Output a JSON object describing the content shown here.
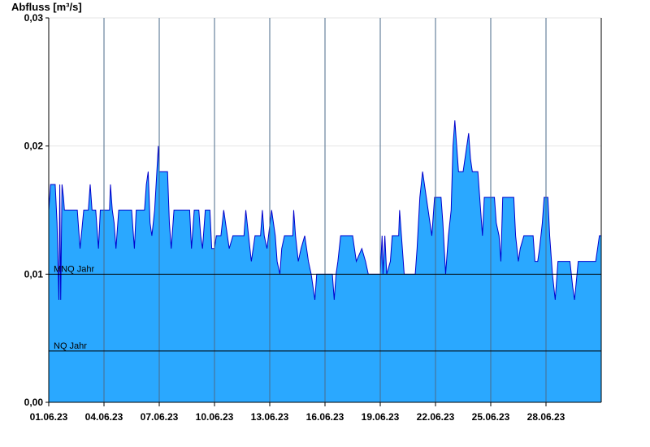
{
  "chart_data": {
    "type": "area",
    "title": "",
    "ylabel": "Abfluss [m³/s]",
    "xlabel": "",
    "ylim": [
      0,
      0.03
    ],
    "x_range_days": [
      0,
      30
    ],
    "y_ticks": [
      {
        "value": 0,
        "label": "0,00"
      },
      {
        "value": 0.01,
        "label": "0,01"
      },
      {
        "value": 0.02,
        "label": "0,02"
      },
      {
        "value": 0.03,
        "label": "0,03"
      }
    ],
    "x_ticks": [
      {
        "day": 0,
        "label": "01.06.23"
      },
      {
        "day": 3,
        "label": "04.06.23"
      },
      {
        "day": 6,
        "label": "07.06.23"
      },
      {
        "day": 9,
        "label": "10.06.23"
      },
      {
        "day": 12,
        "label": "13.06.23"
      },
      {
        "day": 15,
        "label": "16.06.23"
      },
      {
        "day": 18,
        "label": "19.06.23"
      },
      {
        "day": 21,
        "label": "22.06.23"
      },
      {
        "day": 24,
        "label": "25.06.23"
      },
      {
        "day": 27,
        "label": "28.06.23"
      }
    ],
    "reference_lines": [
      {
        "name": "MNQ Jahr",
        "value": 0.01
      },
      {
        "name": "NQ Jahr",
        "value": 0.004
      }
    ],
    "colors": {
      "fill": "#2aa8ff",
      "line": "#0000cc",
      "grid": "#4a6a8a",
      "ref": "#000000"
    },
    "grid_vertical": true,
    "series": [
      {
        "values": [
          [
            0.0,
            0.015
          ],
          [
            0.1,
            0.017
          ],
          [
            0.35,
            0.017
          ],
          [
            0.45,
            0.014
          ],
          [
            0.55,
            0.008
          ],
          [
            0.6,
            0.017
          ],
          [
            0.65,
            0.008
          ],
          [
            0.72,
            0.017
          ],
          [
            0.8,
            0.016
          ],
          [
            0.85,
            0.015
          ],
          [
            1.55,
            0.015
          ],
          [
            1.7,
            0.012
          ],
          [
            1.9,
            0.015
          ],
          [
            2.15,
            0.015
          ],
          [
            2.25,
            0.017
          ],
          [
            2.35,
            0.015
          ],
          [
            2.55,
            0.015
          ],
          [
            2.7,
            0.012
          ],
          [
            2.8,
            0.015
          ],
          [
            3.3,
            0.015
          ],
          [
            3.35,
            0.017
          ],
          [
            3.45,
            0.015
          ],
          [
            3.55,
            0.014
          ],
          [
            3.65,
            0.012
          ],
          [
            3.8,
            0.015
          ],
          [
            4.5,
            0.015
          ],
          [
            4.65,
            0.012
          ],
          [
            4.75,
            0.015
          ],
          [
            5.2,
            0.015
          ],
          [
            5.3,
            0.017
          ],
          [
            5.4,
            0.018
          ],
          [
            5.5,
            0.014
          ],
          [
            5.6,
            0.013
          ],
          [
            5.75,
            0.015
          ],
          [
            5.95,
            0.02
          ],
          [
            6.0,
            0.018
          ],
          [
            6.45,
            0.018
          ],
          [
            6.55,
            0.014
          ],
          [
            6.65,
            0.012
          ],
          [
            6.8,
            0.015
          ],
          [
            7.65,
            0.015
          ],
          [
            7.75,
            0.012
          ],
          [
            7.9,
            0.015
          ],
          [
            8.15,
            0.015
          ],
          [
            8.25,
            0.013
          ],
          [
            8.35,
            0.012
          ],
          [
            8.5,
            0.015
          ],
          [
            8.75,
            0.015
          ],
          [
            8.85,
            0.012
          ],
          [
            9.0,
            0.012
          ],
          [
            9.1,
            0.013
          ],
          [
            9.35,
            0.013
          ],
          [
            9.5,
            0.015
          ],
          [
            9.7,
            0.013
          ],
          [
            9.8,
            0.012
          ],
          [
            10.0,
            0.013
          ],
          [
            10.6,
            0.013
          ],
          [
            10.7,
            0.015
          ],
          [
            10.85,
            0.013
          ],
          [
            11.0,
            0.011
          ],
          [
            11.2,
            0.013
          ],
          [
            11.5,
            0.013
          ],
          [
            11.6,
            0.015
          ],
          [
            11.7,
            0.013
          ],
          [
            11.85,
            0.012
          ],
          [
            12.1,
            0.015
          ],
          [
            12.3,
            0.013
          ],
          [
            12.4,
            0.011
          ],
          [
            12.55,
            0.01
          ],
          [
            12.65,
            0.012
          ],
          [
            12.8,
            0.013
          ],
          [
            13.25,
            0.013
          ],
          [
            13.3,
            0.015
          ],
          [
            13.4,
            0.013
          ],
          [
            13.55,
            0.011
          ],
          [
            13.7,
            0.012
          ],
          [
            13.9,
            0.013
          ],
          [
            14.1,
            0.011
          ],
          [
            14.25,
            0.01
          ],
          [
            14.35,
            0.009
          ],
          [
            14.45,
            0.008
          ],
          [
            14.55,
            0.01
          ],
          [
            15.4,
            0.01
          ],
          [
            15.5,
            0.008
          ],
          [
            15.6,
            0.01
          ],
          [
            15.7,
            0.011
          ],
          [
            15.85,
            0.013
          ],
          [
            16.5,
            0.013
          ],
          [
            16.6,
            0.012
          ],
          [
            16.7,
            0.011
          ],
          [
            17.0,
            0.012
          ],
          [
            17.2,
            0.011
          ],
          [
            17.35,
            0.01
          ],
          [
            18.0,
            0.01
          ],
          [
            18.1,
            0.013
          ],
          [
            18.15,
            0.01
          ],
          [
            18.25,
            0.013
          ],
          [
            18.35,
            0.01
          ],
          [
            18.55,
            0.011
          ],
          [
            18.65,
            0.013
          ],
          [
            19.0,
            0.013
          ],
          [
            19.05,
            0.015
          ],
          [
            19.15,
            0.013
          ],
          [
            19.3,
            0.01
          ],
          [
            19.9,
            0.01
          ],
          [
            20.0,
            0.012
          ],
          [
            20.15,
            0.016
          ],
          [
            20.3,
            0.018
          ],
          [
            20.5,
            0.016
          ],
          [
            20.6,
            0.015
          ],
          [
            20.8,
            0.013
          ],
          [
            20.95,
            0.016
          ],
          [
            21.3,
            0.016
          ],
          [
            21.4,
            0.014
          ],
          [
            21.55,
            0.01
          ],
          [
            21.7,
            0.013
          ],
          [
            21.85,
            0.015
          ],
          [
            21.95,
            0.02
          ],
          [
            22.05,
            0.022
          ],
          [
            22.15,
            0.02
          ],
          [
            22.25,
            0.018
          ],
          [
            22.5,
            0.018
          ],
          [
            22.8,
            0.021
          ],
          [
            22.9,
            0.019
          ],
          [
            23.0,
            0.018
          ],
          [
            23.3,
            0.018
          ],
          [
            23.4,
            0.016
          ],
          [
            23.55,
            0.013
          ],
          [
            23.65,
            0.016
          ],
          [
            24.2,
            0.016
          ],
          [
            24.3,
            0.014
          ],
          [
            24.45,
            0.013
          ],
          [
            24.55,
            0.011
          ],
          [
            24.65,
            0.016
          ],
          [
            25.25,
            0.016
          ],
          [
            25.35,
            0.013
          ],
          [
            25.5,
            0.011
          ],
          [
            25.6,
            0.012
          ],
          [
            25.8,
            0.013
          ],
          [
            26.3,
            0.013
          ],
          [
            26.4,
            0.011
          ],
          [
            26.55,
            0.011
          ],
          [
            26.65,
            0.012
          ],
          [
            26.8,
            0.014
          ],
          [
            26.9,
            0.016
          ],
          [
            27.1,
            0.016
          ],
          [
            27.2,
            0.013
          ],
          [
            27.35,
            0.01
          ],
          [
            27.5,
            0.008
          ],
          [
            27.65,
            0.011
          ],
          [
            28.3,
            0.011
          ],
          [
            28.45,
            0.009
          ],
          [
            28.55,
            0.008
          ],
          [
            28.75,
            0.011
          ],
          [
            29.7,
            0.011
          ],
          [
            29.8,
            0.012
          ],
          [
            29.9,
            0.013
          ],
          [
            30.0,
            0.013
          ]
        ]
      }
    ]
  }
}
